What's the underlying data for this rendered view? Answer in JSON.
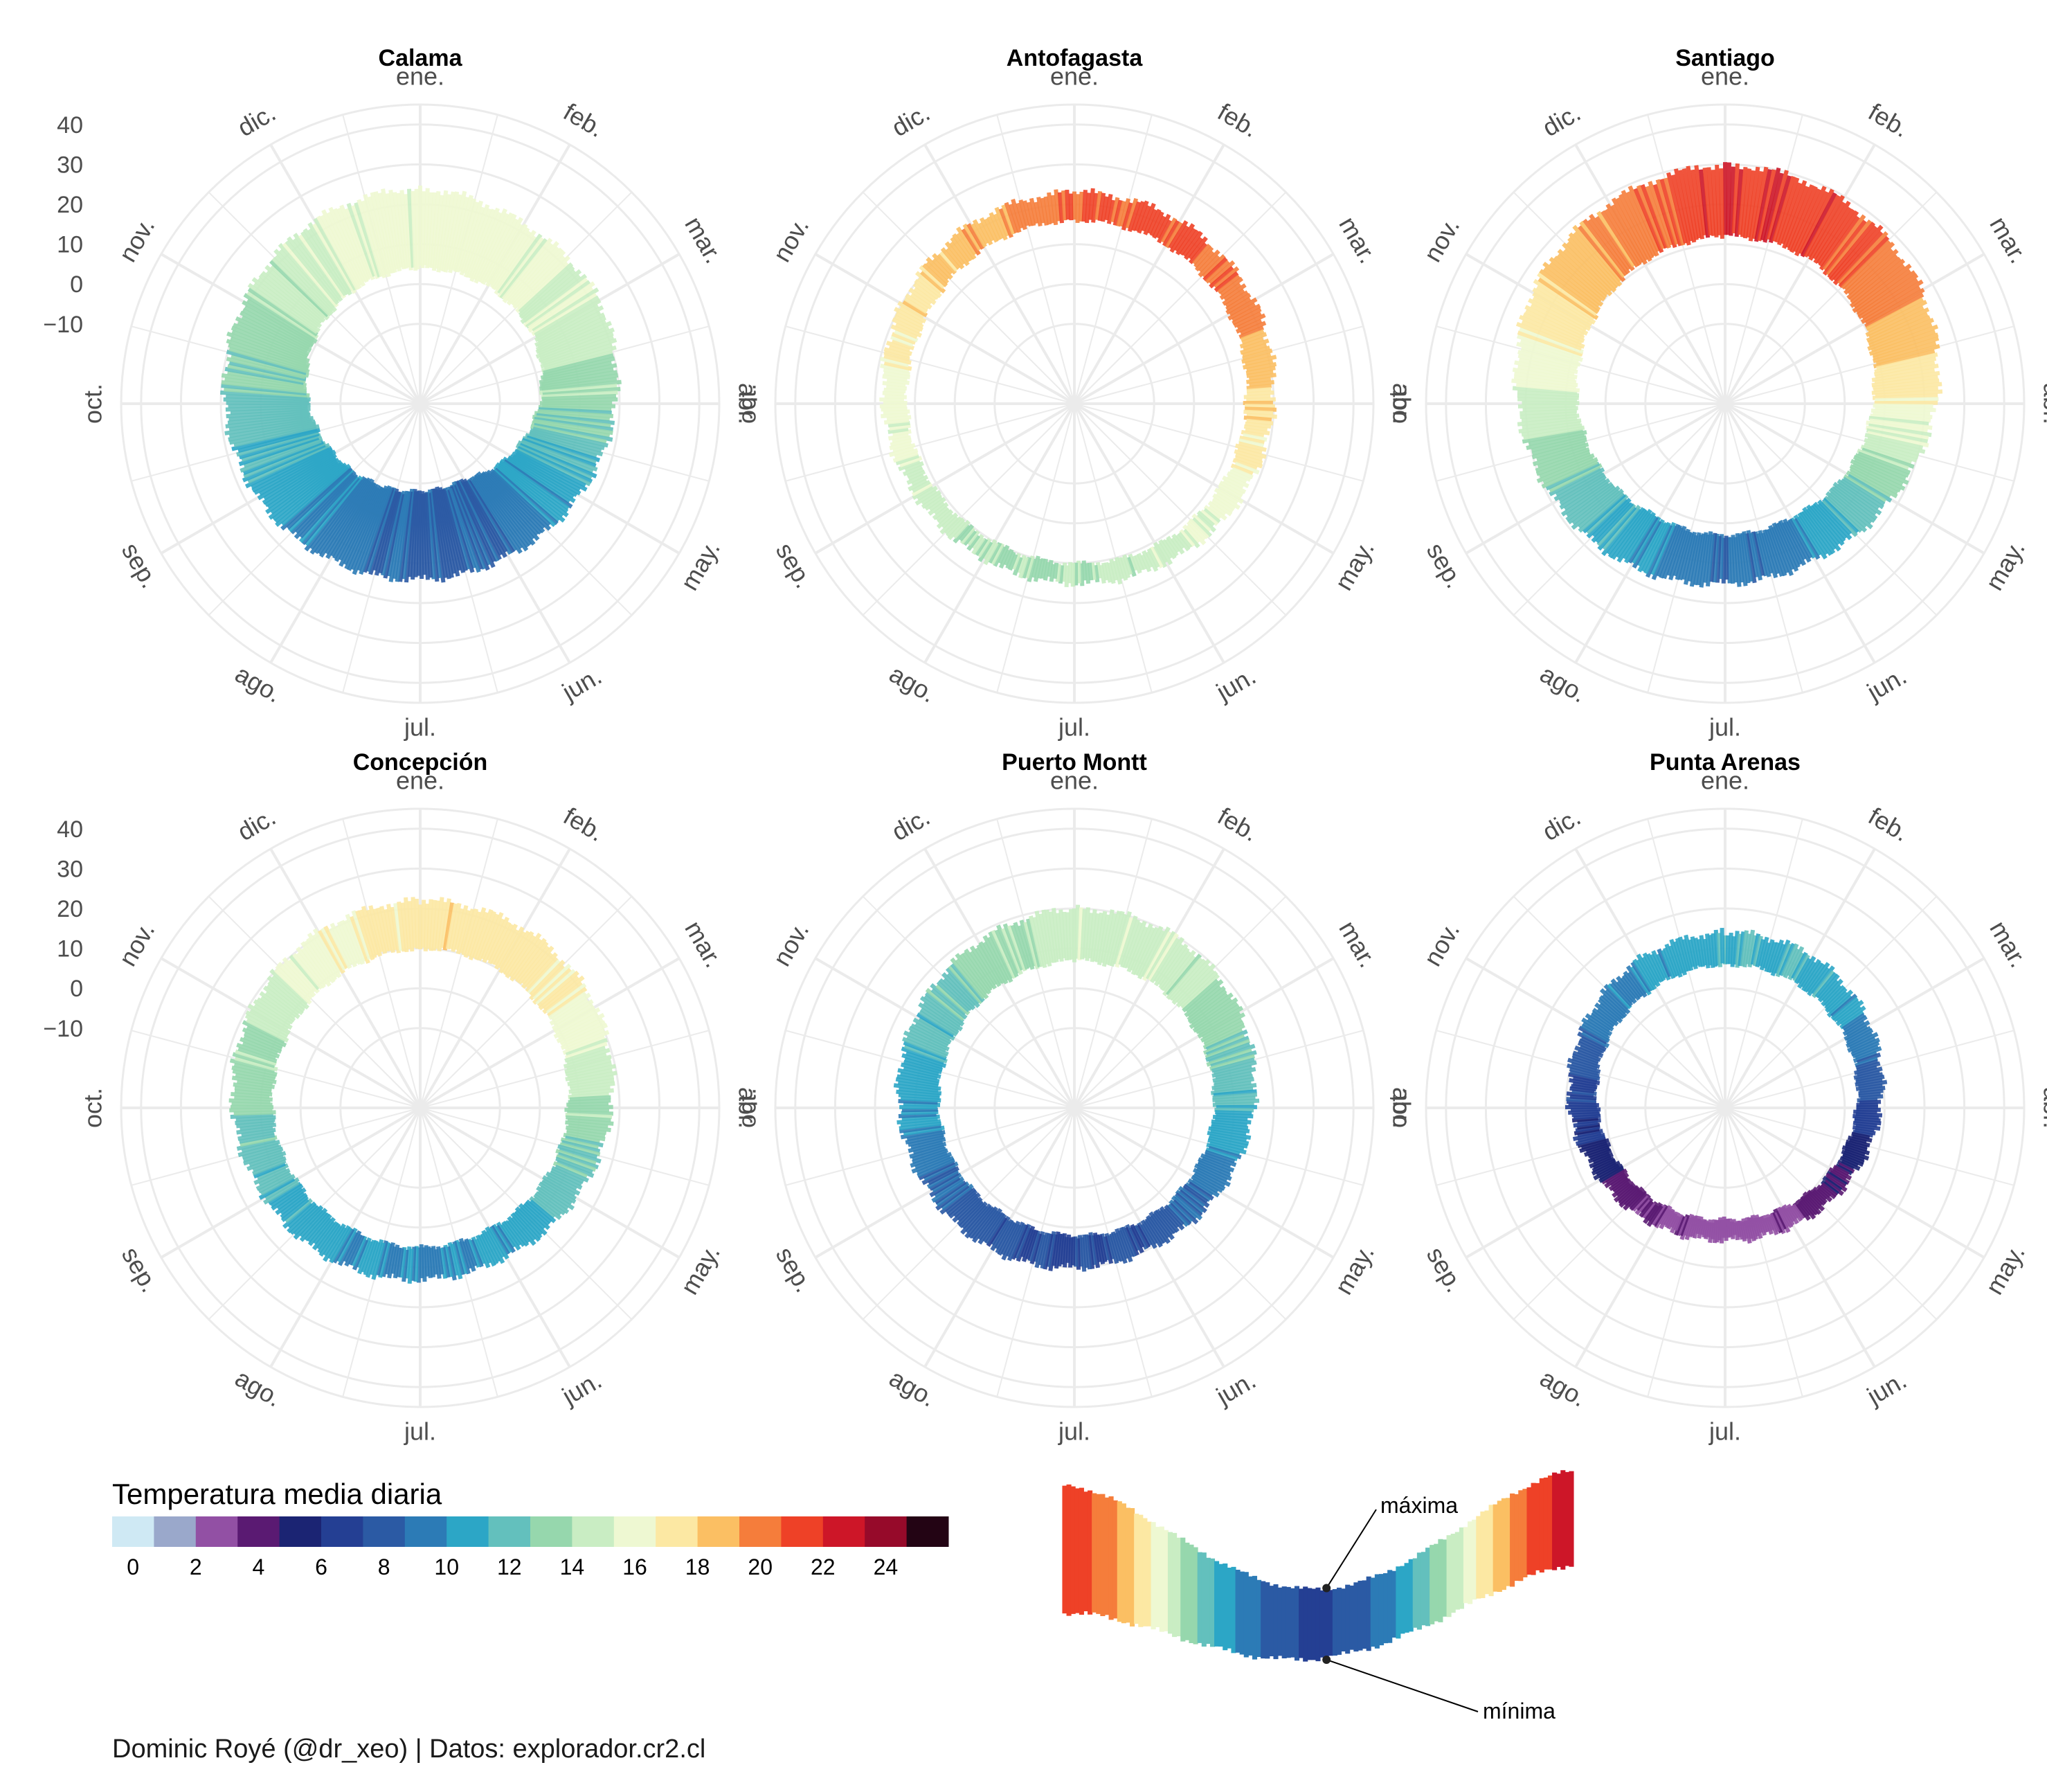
{
  "chart_data": {
    "type": "radial-bar",
    "caption": "Dominic Royé (@dr_xeo) | Datos: explorador.cr2.cl",
    "months": [
      "ene.",
      "feb.",
      "mar.",
      "abr.",
      "may.",
      "jun.",
      "jul.",
      "ago.",
      "sep.",
      "oct.",
      "nov.",
      "dic."
    ],
    "radial_ticks": [
      40,
      30,
      20,
      10,
      0,
      -10
    ],
    "radial_axis": {
      "inner": -30,
      "outer": 45
    },
    "legend": {
      "title": "Temperatura media diaria",
      "ticks": [
        "0",
        "2",
        "4",
        "6",
        "8",
        "10",
        "12",
        "14",
        "16",
        "18",
        "20",
        "22",
        "24"
      ],
      "colors": [
        "#cfe9f4",
        "#9aa8cb",
        "#9250a4",
        "#5a1a72",
        "#1b2473",
        "#243f93",
        "#2b5aa4",
        "#2c7bb6",
        "#2ca6c6",
        "#63c0bd",
        "#96d7ad",
        "#c9edc3",
        "#eef8d2",
        "#fce8a3",
        "#fbbf63",
        "#f57d3b",
        "#ee4127",
        "#cd1628",
        "#960a2a",
        "#230414"
      ]
    },
    "panels": [
      {
        "name": "Calama",
        "max": [
          24,
          22,
          22,
          19,
          16,
          14,
          14,
          15,
          17,
          19,
          21,
          23
        ],
        "min": [
          4,
          4,
          3,
          0,
          -4,
          -8,
          -8,
          -7,
          -5,
          -2,
          1,
          3
        ],
        "mean": [
          15.5,
          15.5,
          14.5,
          13,
          10.5,
          8.5,
          8,
          9,
          10.5,
          12,
          13.5,
          15
        ]
      },
      {
        "name": "Antofagasta",
        "max": [
          23,
          23,
          22,
          20,
          18,
          16,
          15,
          15,
          16,
          18,
          20,
          22
        ],
        "min": [
          16,
          16,
          15,
          13,
          12,
          11,
          10,
          10,
          11,
          12,
          13,
          15
        ],
        "mean": [
          20,
          20.5,
          19.5,
          17.5,
          15.5,
          14.5,
          13.5,
          13.5,
          14.5,
          15.5,
          17,
          18.5
        ]
      },
      {
        "name": "Santiago",
        "max": [
          30,
          29,
          27,
          23,
          18,
          15,
          15,
          17,
          19,
          22,
          26,
          28
        ],
        "min": [
          12,
          12,
          10,
          7,
          5,
          3,
          3,
          3,
          5,
          7,
          9,
          11
        ],
        "mean": [
          21.5,
          21,
          19,
          16,
          12.5,
          9.5,
          8.5,
          10,
          12,
          14.5,
          17,
          19.5
        ]
      },
      {
        "name": "Concepción",
        "max": [
          22,
          22,
          21,
          18,
          15,
          13,
          13,
          14,
          15,
          17,
          19,
          21
        ],
        "min": [
          10,
          10,
          9,
          7,
          6,
          5,
          5,
          5,
          6,
          7,
          8,
          9
        ],
        "mean": [
          17,
          17,
          16,
          13.5,
          11.5,
          10,
          9.5,
          10,
          11,
          12.5,
          14,
          16
        ]
      },
      {
        "name": "Puerto Montt",
        "max": [
          20,
          20,
          18,
          15,
          12,
          10,
          10,
          11,
          12,
          14,
          16,
          18
        ],
        "min": [
          7,
          7,
          6,
          5,
          4,
          3,
          2,
          2,
          3,
          4,
          5,
          6
        ],
        "mean": [
          14.5,
          14.5,
          13,
          11,
          9,
          7.5,
          7,
          7.5,
          8.5,
          10,
          11.5,
          13
        ]
      },
      {
        "name": "Punta Arenas",
        "max": [
          14,
          14,
          12,
          9,
          6,
          4,
          3,
          4,
          6,
          9,
          11,
          13
        ],
        "min": [
          6,
          6,
          5,
          3,
          1,
          -1,
          -2,
          -1,
          0,
          2,
          4,
          5
        ],
        "mean": [
          11,
          11,
          9.5,
          7,
          4.5,
          3,
          2.5,
          3,
          4.5,
          6.5,
          8.5,
          10
        ]
      }
    ],
    "inset": {
      "max_label": "máxima",
      "min_label": "mínima"
    }
  }
}
